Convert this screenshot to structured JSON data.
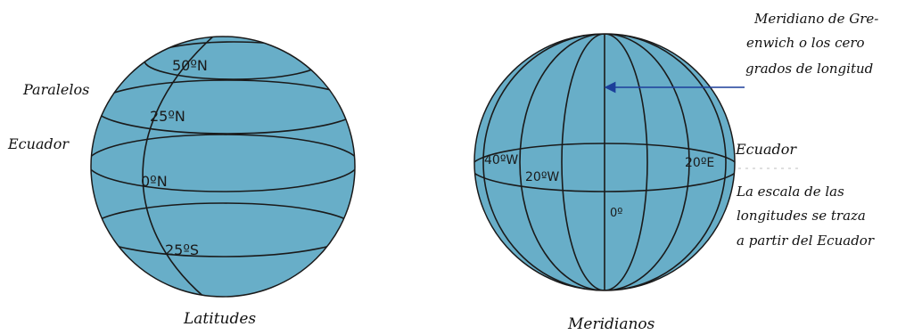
{
  "colors": {
    "globe_fill": "#68aec8",
    "line": "#1a1a1a",
    "arrow": "#1c3f9a",
    "background": "#ffffff"
  },
  "left_globe": {
    "caption": "Latitudes",
    "labels": {
      "paralelos": "Paralelos",
      "ecuador": "Ecuador"
    },
    "parallels": [
      {
        "label": "50ºN"
      },
      {
        "label": "25ºN"
      },
      {
        "label": "0ºN"
      },
      {
        "label": "25ºS"
      }
    ]
  },
  "right_globe": {
    "caption": "Meridianos",
    "meridians": [
      {
        "label": "40ºW"
      },
      {
        "label": "20ºW"
      },
      {
        "label": "0º"
      },
      {
        "label": "20ºE"
      }
    ],
    "labels": {
      "ecuador": "Ecuador",
      "greenwich_lines": [
        "Meridiano de Gre-",
        "enwich o los cero",
        "grados de longitud"
      ],
      "scale_lines": [
        "La escala de las",
        "longitudes se traza",
        "a partir del Ecuador"
      ]
    }
  }
}
